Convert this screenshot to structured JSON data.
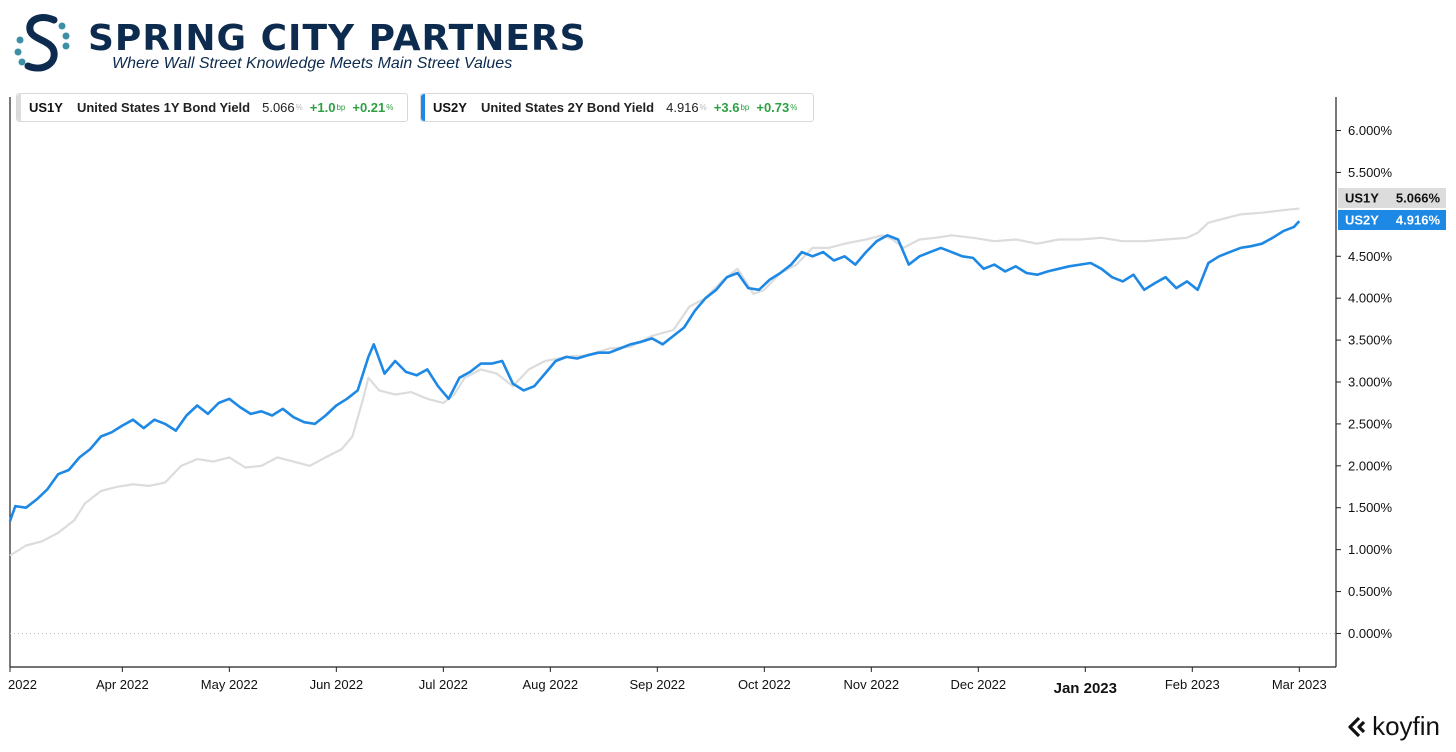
{
  "brand": {
    "title": "SPRING CITY PARTNERS",
    "subtitle": "Where Wall Street Knowledge Meets Main Street Values"
  },
  "legend": [
    {
      "ticker": "US1Y",
      "name": "United States 1Y Bond Yield",
      "value": "5.066",
      "value_unit": "%",
      "change": "+1.0",
      "change_unit": "bp",
      "pct": "+0.21",
      "pct_unit": "%",
      "color": "#dcdcdc"
    },
    {
      "ticker": "US2Y",
      "name": "United States 2Y Bond Yield",
      "value": "4.916",
      "value_unit": "%",
      "change": "+3.6",
      "change_unit": "bp",
      "pct": "+0.73",
      "pct_unit": "%",
      "color": "#1e88e5"
    }
  ],
  "watermark": "koyfin",
  "chart_data": {
    "type": "line",
    "x_ticks": [
      {
        "label": "2022",
        "t": 0
      },
      {
        "label": "Apr 2022",
        "t": 21
      },
      {
        "label": "May 2022",
        "t": 41
      },
      {
        "label": "Jun 2022",
        "t": 61
      },
      {
        "label": "Jul 2022",
        "t": 81
      },
      {
        "label": "Aug 2022",
        "t": 101
      },
      {
        "label": "Sep 2022",
        "t": 121
      },
      {
        "label": "Oct 2022",
        "t": 141
      },
      {
        "label": "Nov 2022",
        "t": 161
      },
      {
        "label": "Dec 2022",
        "t": 181
      },
      {
        "label": "Jan 2023",
        "t": 201,
        "bold": true
      },
      {
        "label": "Feb 2023",
        "t": 221
      },
      {
        "label": "Mar 2023",
        "t": 241
      }
    ],
    "t_range": [
      0,
      243
    ],
    "ylim": [
      -0.4,
      6.4
    ],
    "y_ticks": [
      "0.000%",
      "0.500%",
      "1.000%",
      "1.500%",
      "2.000%",
      "2.500%",
      "3.000%",
      "3.500%",
      "4.000%",
      "4.500%",
      "5.500%",
      "6.000%"
    ],
    "y_tick_values": [
      0,
      0.5,
      1.0,
      1.5,
      2.0,
      2.5,
      3.0,
      3.5,
      4.0,
      4.5,
      5.5,
      6.0
    ],
    "zero_line": true,
    "series": [
      {
        "name": "US1Y",
        "color": "#dcdcdc",
        "last_label": "US1Y",
        "last_value": "5.066%",
        "points": [
          [
            0,
            0.93
          ],
          [
            3,
            1.05
          ],
          [
            6,
            1.1
          ],
          [
            9,
            1.2
          ],
          [
            12,
            1.35
          ],
          [
            14,
            1.55
          ],
          [
            17,
            1.7
          ],
          [
            20,
            1.75
          ],
          [
            23,
            1.78
          ],
          [
            26,
            1.76
          ],
          [
            29,
            1.8
          ],
          [
            32,
            2.0
          ],
          [
            35,
            2.08
          ],
          [
            38,
            2.05
          ],
          [
            41,
            2.1
          ],
          [
            44,
            1.98
          ],
          [
            47,
            2.0
          ],
          [
            50,
            2.1
          ],
          [
            53,
            2.05
          ],
          [
            56,
            2.0
          ],
          [
            59,
            2.1
          ],
          [
            62,
            2.2
          ],
          [
            64,
            2.35
          ],
          [
            66,
            2.8
          ],
          [
            67,
            3.05
          ],
          [
            69,
            2.9
          ],
          [
            72,
            2.85
          ],
          [
            75,
            2.88
          ],
          [
            78,
            2.8
          ],
          [
            81,
            2.75
          ],
          [
            83,
            2.85
          ],
          [
            85,
            3.05
          ],
          [
            88,
            3.15
          ],
          [
            91,
            3.1
          ],
          [
            94,
            2.95
          ],
          [
            97,
            3.15
          ],
          [
            100,
            3.25
          ],
          [
            104,
            3.3
          ],
          [
            108,
            3.32
          ],
          [
            112,
            3.4
          ],
          [
            116,
            3.42
          ],
          [
            120,
            3.55
          ],
          [
            124,
            3.62
          ],
          [
            127,
            3.9
          ],
          [
            130,
            4.0
          ],
          [
            133,
            4.2
          ],
          [
            136,
            4.35
          ],
          [
            139,
            4.05
          ],
          [
            141,
            4.1
          ],
          [
            144,
            4.3
          ],
          [
            147,
            4.4
          ],
          [
            150,
            4.6
          ],
          [
            153,
            4.6
          ],
          [
            156,
            4.65
          ],
          [
            160,
            4.7
          ],
          [
            163,
            4.75
          ],
          [
            165,
            4.7
          ],
          [
            167,
            4.6
          ],
          [
            170,
            4.7
          ],
          [
            173,
            4.72
          ],
          [
            176,
            4.75
          ],
          [
            180,
            4.72
          ],
          [
            184,
            4.68
          ],
          [
            188,
            4.7
          ],
          [
            192,
            4.65
          ],
          [
            196,
            4.7
          ],
          [
            200,
            4.7
          ],
          [
            204,
            4.72
          ],
          [
            208,
            4.68
          ],
          [
            212,
            4.68
          ],
          [
            216,
            4.7
          ],
          [
            220,
            4.72
          ],
          [
            222,
            4.78
          ],
          [
            224,
            4.9
          ],
          [
            227,
            4.95
          ],
          [
            230,
            5.0
          ],
          [
            234,
            5.02
          ],
          [
            238,
            5.05
          ],
          [
            241,
            5.07
          ]
        ]
      },
      {
        "name": "US2Y",
        "color": "#1e88e5",
        "last_label": "US2Y",
        "last_value": "4.916%",
        "points": [
          [
            0,
            1.34
          ],
          [
            1,
            1.52
          ],
          [
            3,
            1.5
          ],
          [
            5,
            1.6
          ],
          [
            7,
            1.72
          ],
          [
            9,
            1.9
          ],
          [
            11,
            1.95
          ],
          [
            13,
            2.1
          ],
          [
            15,
            2.2
          ],
          [
            17,
            2.35
          ],
          [
            19,
            2.4
          ],
          [
            21,
            2.48
          ],
          [
            23,
            2.55
          ],
          [
            25,
            2.45
          ],
          [
            27,
            2.55
          ],
          [
            29,
            2.5
          ],
          [
            31,
            2.42
          ],
          [
            33,
            2.6
          ],
          [
            35,
            2.72
          ],
          [
            37,
            2.62
          ],
          [
            39,
            2.75
          ],
          [
            41,
            2.8
          ],
          [
            43,
            2.7
          ],
          [
            45,
            2.62
          ],
          [
            47,
            2.65
          ],
          [
            49,
            2.6
          ],
          [
            51,
            2.68
          ],
          [
            53,
            2.58
          ],
          [
            55,
            2.52
          ],
          [
            57,
            2.5
          ],
          [
            59,
            2.6
          ],
          [
            61,
            2.72
          ],
          [
            63,
            2.8
          ],
          [
            65,
            2.9
          ],
          [
            67,
            3.3
          ],
          [
            68,
            3.45
          ],
          [
            70,
            3.1
          ],
          [
            72,
            3.25
          ],
          [
            74,
            3.12
          ],
          [
            76,
            3.08
          ],
          [
            78,
            3.15
          ],
          [
            80,
            2.95
          ],
          [
            82,
            2.8
          ],
          [
            84,
            3.05
          ],
          [
            86,
            3.12
          ],
          [
            88,
            3.22
          ],
          [
            90,
            3.22
          ],
          [
            92,
            3.25
          ],
          [
            94,
            2.98
          ],
          [
            96,
            2.9
          ],
          [
            98,
            2.95
          ],
          [
            100,
            3.1
          ],
          [
            102,
            3.25
          ],
          [
            104,
            3.3
          ],
          [
            106,
            3.28
          ],
          [
            108,
            3.32
          ],
          [
            110,
            3.35
          ],
          [
            112,
            3.35
          ],
          [
            114,
            3.4
          ],
          [
            116,
            3.45
          ],
          [
            118,
            3.48
          ],
          [
            120,
            3.52
          ],
          [
            122,
            3.45
          ],
          [
            124,
            3.55
          ],
          [
            126,
            3.65
          ],
          [
            128,
            3.85
          ],
          [
            130,
            4.0
          ],
          [
            132,
            4.1
          ],
          [
            134,
            4.25
          ],
          [
            136,
            4.3
          ],
          [
            138,
            4.12
          ],
          [
            140,
            4.1
          ],
          [
            142,
            4.22
          ],
          [
            144,
            4.3
          ],
          [
            146,
            4.4
          ],
          [
            148,
            4.55
          ],
          [
            150,
            4.5
          ],
          [
            152,
            4.55
          ],
          [
            154,
            4.45
          ],
          [
            156,
            4.5
          ],
          [
            158,
            4.4
          ],
          [
            160,
            4.55
          ],
          [
            162,
            4.68
          ],
          [
            164,
            4.75
          ],
          [
            166,
            4.7
          ],
          [
            168,
            4.4
          ],
          [
            170,
            4.5
          ],
          [
            172,
            4.55
          ],
          [
            174,
            4.6
          ],
          [
            176,
            4.55
          ],
          [
            178,
            4.5
          ],
          [
            180,
            4.48
          ],
          [
            182,
            4.35
          ],
          [
            184,
            4.4
          ],
          [
            186,
            4.32
          ],
          [
            188,
            4.38
          ],
          [
            190,
            4.3
          ],
          [
            192,
            4.28
          ],
          [
            194,
            4.32
          ],
          [
            196,
            4.35
          ],
          [
            198,
            4.38
          ],
          [
            200,
            4.4
          ],
          [
            202,
            4.42
          ],
          [
            204,
            4.35
          ],
          [
            206,
            4.25
          ],
          [
            208,
            4.2
          ],
          [
            210,
            4.28
          ],
          [
            212,
            4.1
          ],
          [
            214,
            4.18
          ],
          [
            216,
            4.25
          ],
          [
            218,
            4.12
          ],
          [
            220,
            4.2
          ],
          [
            222,
            4.1
          ],
          [
            224,
            4.42
          ],
          [
            226,
            4.5
          ],
          [
            228,
            4.55
          ],
          [
            230,
            4.6
          ],
          [
            232,
            4.62
          ],
          [
            234,
            4.65
          ],
          [
            236,
            4.72
          ],
          [
            238,
            4.8
          ],
          [
            240,
            4.85
          ],
          [
            241,
            4.92
          ]
        ]
      }
    ]
  }
}
